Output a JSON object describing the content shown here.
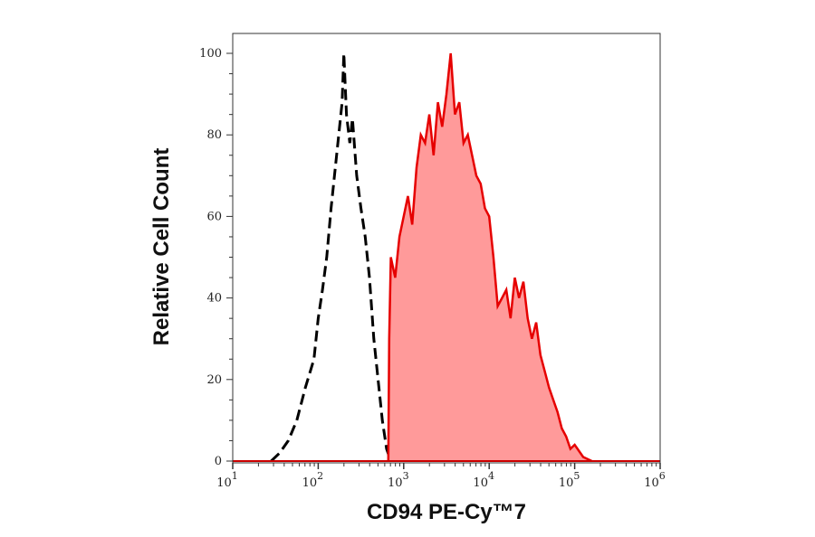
{
  "chart_data": {
    "type": "area",
    "title": "",
    "xlabel": "CD94 PE-Cy™7",
    "ylabel": "Relative Cell Count",
    "x_scale": "log",
    "xlim": [
      10,
      1000000
    ],
    "ylim": [
      0,
      105
    ],
    "x_ticks": [
      {
        "base": "10",
        "exp": "1"
      },
      {
        "base": "10",
        "exp": "2"
      },
      {
        "base": "10",
        "exp": "3"
      },
      {
        "base": "10",
        "exp": "4"
      },
      {
        "base": "10",
        "exp": "5"
      },
      {
        "base": "10",
        "exp": "6"
      }
    ],
    "y_ticks": [
      "0",
      "20",
      "40",
      "60",
      "80",
      "100"
    ],
    "grid": false,
    "series": [
      {
        "style": "dashed-line",
        "color": "#000000",
        "log10_x": [
          1.45,
          1.55,
          1.65,
          1.75,
          1.85,
          1.95,
          2.0,
          2.05,
          2.1,
          2.15,
          2.2,
          2.25,
          2.28,
          2.3,
          2.33,
          2.37,
          2.4,
          2.45,
          2.5,
          2.55,
          2.6,
          2.65,
          2.7,
          2.75,
          2.8,
          2.85
        ],
        "y": [
          0,
          2,
          5,
          10,
          18,
          25,
          35,
          42,
          50,
          62,
          72,
          82,
          88,
          100,
          85,
          78,
          84,
          70,
          62,
          55,
          45,
          30,
          20,
          10,
          3,
          0
        ]
      },
      {
        "style": "filled",
        "color": "#e60000",
        "fill": "#ff9a9a",
        "log10_x": [
          2.82,
          2.83,
          2.85,
          2.9,
          2.95,
          3.0,
          3.05,
          3.1,
          3.15,
          3.2,
          3.25,
          3.3,
          3.35,
          3.4,
          3.45,
          3.5,
          3.55,
          3.6,
          3.65,
          3.7,
          3.75,
          3.8,
          3.85,
          3.9,
          3.95,
          4.0,
          4.05,
          4.1,
          4.15,
          4.2,
          4.25,
          4.3,
          4.35,
          4.4,
          4.45,
          4.5,
          4.55,
          4.6,
          4.65,
          4.7,
          4.75,
          4.8,
          4.85,
          4.9,
          4.95,
          5.0,
          5.1,
          5.2
        ],
        "y": [
          0,
          30,
          50,
          45,
          55,
          60,
          65,
          58,
          72,
          80,
          78,
          85,
          75,
          88,
          82,
          90,
          100,
          85,
          88,
          78,
          80,
          75,
          70,
          68,
          62,
          60,
          50,
          38,
          40,
          42,
          35,
          45,
          40,
          44,
          35,
          30,
          34,
          26,
          22,
          18,
          15,
          12,
          8,
          6,
          3,
          4,
          1,
          0
        ]
      }
    ]
  }
}
